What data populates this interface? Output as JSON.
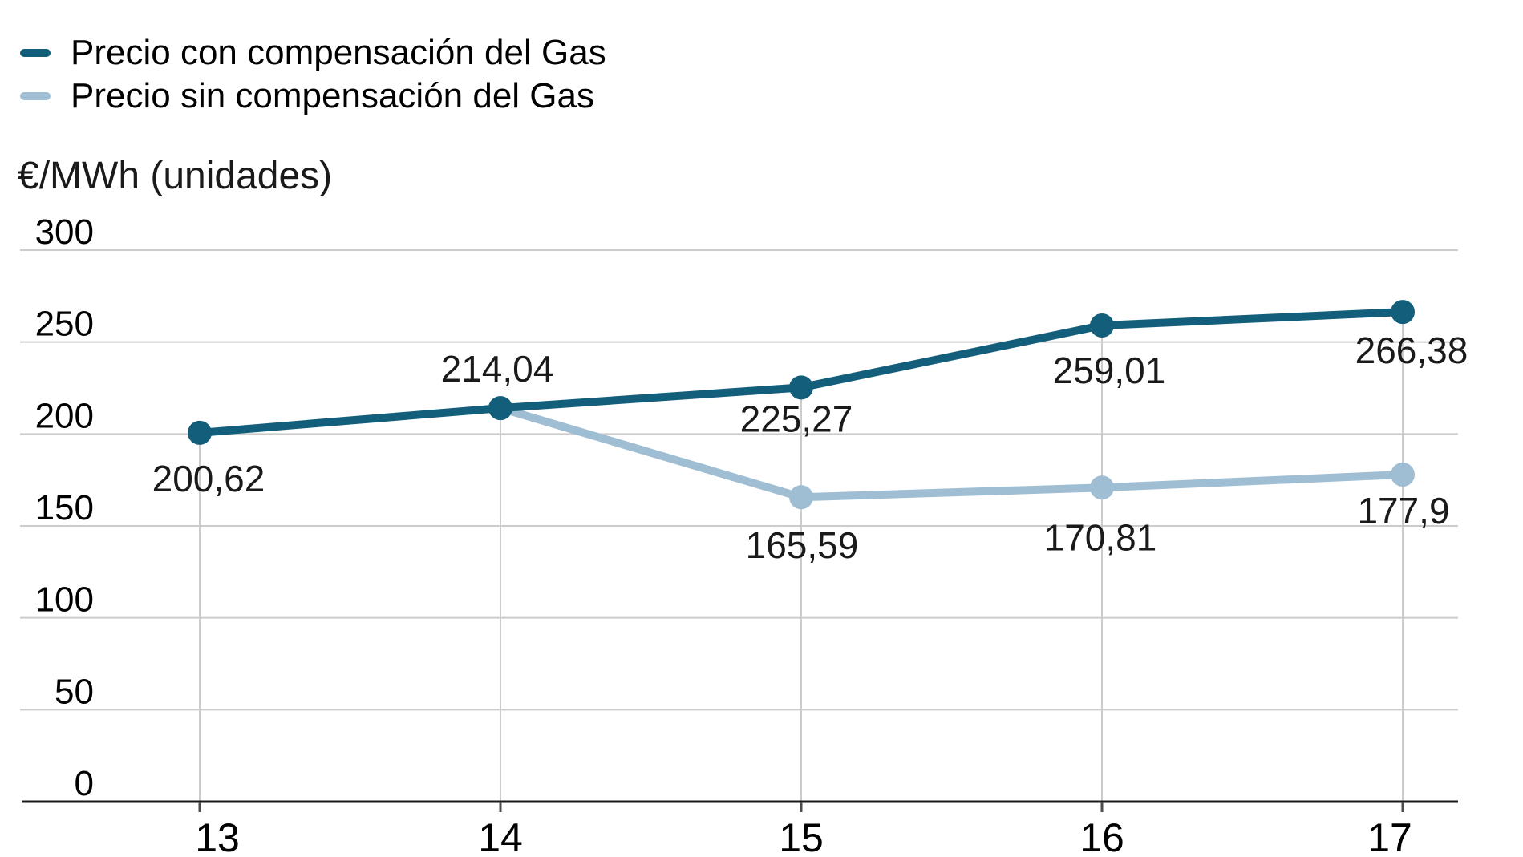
{
  "legend": {
    "items": [
      {
        "label": "Precio con compensación del Gas",
        "color": "#135e7b"
      },
      {
        "label": "Precio sin compensación del Gas",
        "color": "#9fbed3"
      }
    ]
  },
  "axis_title": "€/MWh (unidades)",
  "chart_data": {
    "type": "line",
    "title": "",
    "xlabel": "",
    "ylabel": "€/MWh (unidades)",
    "categories": [
      "13",
      "14",
      "15",
      "16",
      "17"
    ],
    "series": [
      {
        "name": "Precio con compensación del Gas",
        "color": "#135e7b",
        "values": [
          200.62,
          214.04,
          225.27,
          259.01,
          266.38
        ],
        "labels": [
          "200,62",
          "214,04",
          "225,27",
          "259,01",
          "266,38"
        ]
      },
      {
        "name": "Precio sin compensación del Gas",
        "color": "#9fbed3",
        "values": [
          null,
          214.04,
          165.59,
          170.81,
          177.9
        ],
        "labels": [
          null,
          null,
          "165,59",
          "170,81",
          "177,9"
        ]
      }
    ],
    "ylim": [
      0,
      300
    ],
    "y_tick_step": 50,
    "y_ticks": [
      "0",
      "50",
      "100",
      "150",
      "200",
      "250",
      "300"
    ],
    "grid": true,
    "legend_position": "top-left",
    "colors": {
      "grid": "#cccccc",
      "axis": "#1a1a1a",
      "tick": "#4d4d4d",
      "text": "#000000",
      "data_label": "#1a1a1a"
    }
  }
}
